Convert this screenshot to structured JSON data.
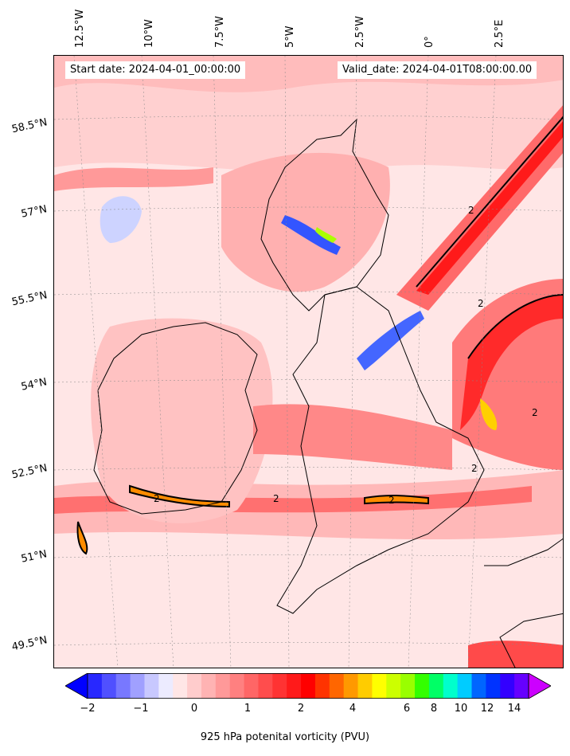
{
  "header": {
    "start_date": "Start date: 2024-04-01_00:00:00",
    "valid_date": "Valid_date: 2024-04-01T08:00:00.00"
  },
  "axes": {
    "latitude_labels": [
      "58.5°N",
      "57°N",
      "55.5°N",
      "54°N",
      "52.5°N",
      "51°N",
      "49.5°N"
    ],
    "longitude_labels": [
      "12.5°W",
      "10°W",
      "7.5°W",
      "5°W",
      "2.5°W",
      "0°",
      "2.5°E"
    ]
  },
  "colorbar": {
    "tick_labels": [
      "−2",
      "−1",
      "0",
      "1",
      "2",
      "4",
      "6",
      "8",
      "10",
      "12",
      "14"
    ],
    "label": "925 hPa potenital vorticity (PVU)",
    "colors": [
      "#0000ff",
      "#2828ff",
      "#5050ff",
      "#7878ff",
      "#a0a0ff",
      "#c8c8ff",
      "#ecebff",
      "#ffe6e6",
      "#ffcccc",
      "#ffb3b3",
      "#ff9999",
      "#ff8080",
      "#ff6666",
      "#ff4d4d",
      "#ff3333",
      "#ff1a1a",
      "#ff0000",
      "#ff3300",
      "#ff6600",
      "#ff9900",
      "#ffcc00",
      "#ffff00",
      "#ccff00",
      "#99ff00",
      "#33ff00",
      "#00ff66",
      "#00ffcc",
      "#00ccff",
      "#0066ff",
      "#0033ff",
      "#3300ff",
      "#6600ff",
      "#cc00ff"
    ]
  },
  "map": {
    "contour_label": "2",
    "colors": {
      "background": "#ffe3e3",
      "light": "#ffc4c4",
      "mid": "#ff9a9a",
      "strong": "#ff5c5c",
      "intense": "#ff2020",
      "orange": "#ff8c00",
      "yellow": "#ffe000",
      "blue": "#3355ff",
      "pale_blue": "#cfd6ff",
      "coast": "#000000"
    }
  }
}
